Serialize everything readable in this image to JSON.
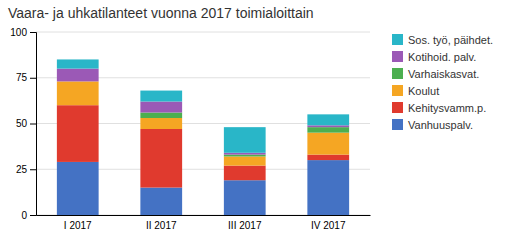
{
  "chart_data": {
    "type": "bar",
    "stacked": true,
    "title": "Vaara- ja uhkatilanteet vuonna 2017 toimialoittain",
    "categories": [
      "I 2017",
      "II 2017",
      "III 2017",
      "IV 2017"
    ],
    "series": [
      {
        "name": "Vanhuuspalv.",
        "color": "#4472c4",
        "values": [
          29,
          15,
          19,
          30
        ]
      },
      {
        "name": "Kehitysvamm.p.",
        "color": "#e03a2e",
        "values": [
          31,
          32,
          8,
          3
        ]
      },
      {
        "name": "Koulut",
        "color": "#f5a623",
        "values": [
          13,
          6,
          5,
          12
        ]
      },
      {
        "name": "Varhaiskasvat.",
        "color": "#4caf50",
        "values": [
          0,
          3,
          1,
          3
        ]
      },
      {
        "name": "Kotihoid. palv.",
        "color": "#9b59b6",
        "values": [
          7,
          6,
          1,
          1
        ]
      },
      {
        "name": "Sos. työ, päihdet.",
        "color": "#29b6c8",
        "values": [
          5,
          6,
          14,
          6
        ]
      }
    ],
    "ylim": [
      0,
      100
    ],
    "yticks": [
      0,
      25,
      50,
      75,
      100
    ],
    "grid": true,
    "legend": "right"
  }
}
